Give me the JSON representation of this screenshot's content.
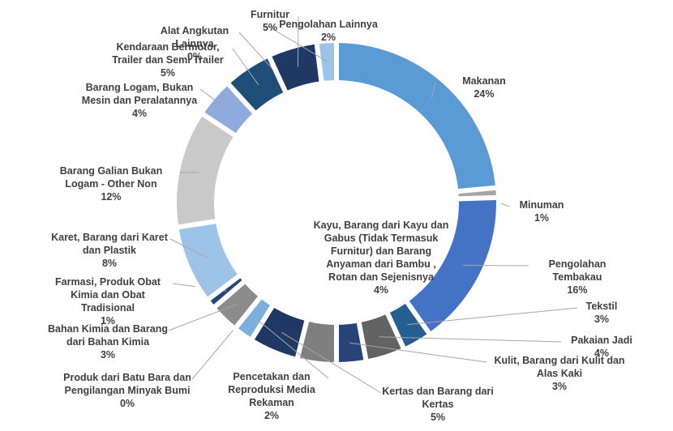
{
  "chart_data": {
    "type": "donut",
    "categories": [
      "Makanan",
      "Minuman",
      "Pengolahan Tembakau",
      "Tekstil",
      "Pakaian Jadi",
      "Kulit, Barang dari Kulit dan Alas Kaki",
      "Kayu, Barang dari Kayu dan Gabus (Tidak Termasuk Furnitur) dan Barang Anyaman dari Bambu , Rotan dan Sejenisnya",
      "Kertas dan Barang dari Kertas",
      "Pencetakan dan Reproduksi Media Rekaman",
      "Produk dari Batu Bara dan Pengilangan Minyak Bumi",
      "Bahan Kimia dan Barang dari Bahan Kimia",
      "Farmasi, Produk Obat Kimia dan Obat Tradisional",
      "Karet, Barang dari Karet dan Plastik",
      "Barang Galian Bukan Logam - Other Non",
      "Barang Logam, Bukan Mesin dan Peralatannya",
      "Kendaraan Bermotor, Trailer dan Semi Trailer",
      "Alat Angkutan Lainnya",
      "Furnitur",
      "Pengolahan Lainnya"
    ],
    "values": [
      24,
      1,
      16,
      3,
      4,
      3,
      4,
      5,
      2,
      0,
      3,
      1,
      8,
      12,
      4,
      5,
      0,
      5,
      2
    ],
    "value_labels": [
      "24%",
      "1%",
      "16%",
      "3%",
      "4%",
      "3%",
      "4%",
      "5%",
      "2%",
      "0%",
      "3%",
      "1%",
      "8%",
      "12%",
      "4%",
      "5%",
      "0%",
      "5%",
      "2%"
    ],
    "colors": [
      "#5b9bd5",
      "#a5a5a5",
      "#4472c4",
      "#255e91",
      "#636363",
      "#264478",
      "#7f7f7f",
      "#203864",
      "#7cafdd",
      "#2f75b5",
      "#8c8c8c",
      "#264478",
      "#9dc3e6",
      "#c9c9c9",
      "#8faadc",
      "#1f4e79",
      "#2e75b6",
      "#203864",
      "#9dc3e6"
    ]
  }
}
